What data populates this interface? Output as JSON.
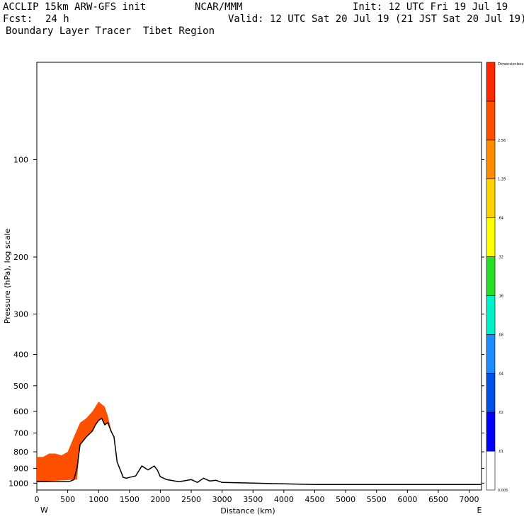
{
  "header": {
    "model": "ACCLIP 15km ARW-GFS init",
    "org": "NCAR/MMM",
    "init": "Init: 12 UTC Fri 19 Jul 19",
    "fcst_label": "Fcst:",
    "fcst_value": "24 h",
    "valid": "Valid: 12 UTC Sat 20 Jul 19 (21 JST Sat 20 Jul 19)",
    "title": "Boundary Layer Tracer  Tibet Region"
  },
  "chart_data": {
    "type": "area",
    "title": "Boundary Layer Tracer  Tibet Region",
    "xlabel": "Distance (km)",
    "ylabel": "Pressure (hPa), log scale",
    "x_ticks": [
      0,
      500,
      1000,
      1500,
      2000,
      2500,
      3000,
      3500,
      4000,
      4500,
      5000,
      5500,
      6000,
      6500,
      7000
    ],
    "y_ticks": [
      100,
      200,
      300,
      400,
      500,
      600,
      700,
      800,
      900,
      1000
    ],
    "xlim": [
      0,
      7200
    ],
    "ylim": [
      1050,
      50
    ],
    "y_scale": "log",
    "x_end_labels": {
      "left": "W",
      "right": "E"
    },
    "colorbar": {
      "levels": [
        "0.005",
        ".01",
        ".02",
        ".04",
        ".08",
        ".16",
        ".32",
        ".64",
        "1.28",
        "2.56",
        "Dimensionless"
      ],
      "colors": [
        "#ffffff",
        "#0000ff",
        "#0050e6",
        "#1e8cff",
        "#00f0c8",
        "#28dc28",
        "#ffff00",
        "#ffd200",
        "#ff8c00",
        "#ff5000",
        "#ff2800"
      ]
    },
    "terrain": {
      "x": [
        0,
        250,
        500,
        550,
        600,
        650,
        700,
        800,
        900,
        950,
        1000,
        1050,
        1100,
        1150,
        1200,
        1250,
        1300,
        1400,
        1450,
        1500,
        1600,
        1700,
        1800,
        1900,
        1950,
        2000,
        2100,
        2300,
        2500,
        2600,
        2700,
        2800,
        2900,
        3000,
        3500,
        4000,
        4500,
        5000,
        6000,
        7000,
        7200
      ],
      "pressure": [
        990,
        990,
        990,
        985,
        975,
        900,
        760,
        720,
        690,
        660,
        640,
        630,
        660,
        650,
        690,
        720,
        860,
        960,
        965,
        960,
        950,
        885,
        910,
        885,
        910,
        955,
        975,
        990,
        975,
        995,
        965,
        985,
        980,
        995,
        1000,
        1005,
        1010,
        1010,
        1010,
        1010,
        1010
      ]
    },
    "tracer_regions": [
      {
        "level": "2.56",
        "x": [
          0,
          650,
          700,
          800,
          900,
          950,
          1000,
          1050,
          1100,
          1150,
          1200,
          1250,
          1300,
          1250,
          1200,
          1150,
          1100,
          1000,
          900,
          800,
          700,
          600,
          500,
          400,
          300,
          200,
          100,
          0
        ],
        "pressure": [
          990,
          975,
          760,
          720,
          690,
          660,
          640,
          630,
          660,
          650,
          690,
          720,
          780,
          720,
          680,
          620,
          580,
          560,
          600,
          630,
          650,
          720,
          800,
          820,
          810,
          810,
          830,
          830
        ]
      }
    ]
  }
}
